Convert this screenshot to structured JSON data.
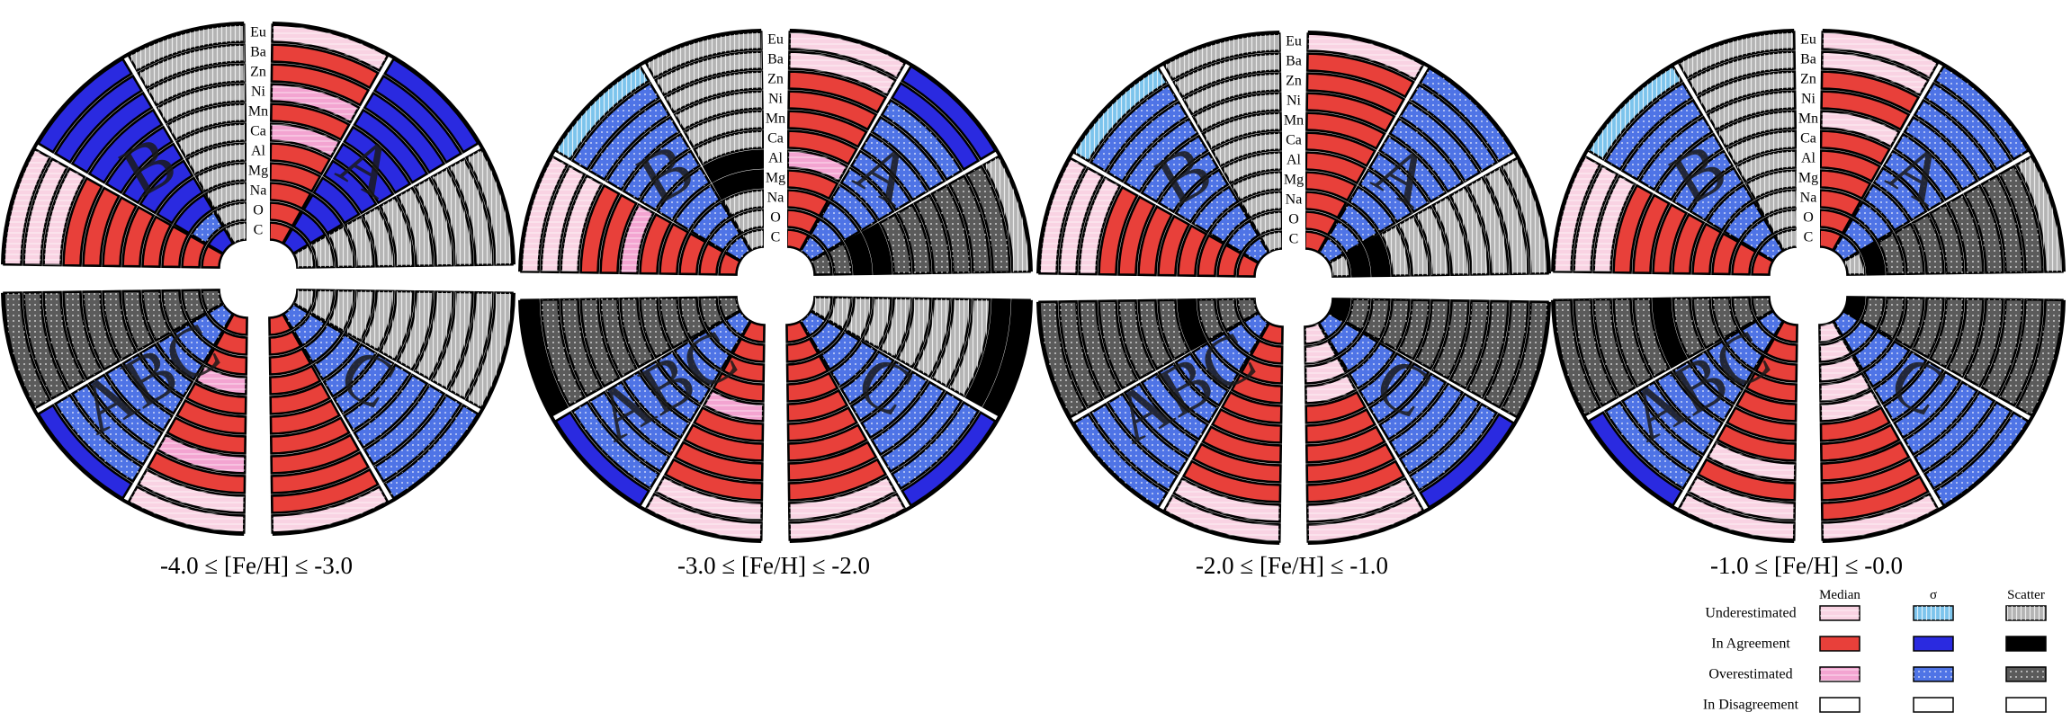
{
  "chart_data": {
    "type": "radial-segmented-wheel",
    "title": "",
    "elements": [
      "C",
      "O",
      "Na",
      "Mg",
      "Al",
      "Ca",
      "Mn",
      "Ni",
      "Zn",
      "Ba",
      "Eu"
    ],
    "element_labels_top_to_bottom": [
      "Eu",
      "Ba",
      "Zn",
      "Ni",
      "Mn",
      "Ca",
      "Al",
      "Mg",
      "Na",
      "O",
      "C"
    ],
    "measure_order_in_half_sector": [
      "Median",
      "σ",
      "Scatter"
    ],
    "category_codes": {
      "U": "Underestimated",
      "A": "In Agreement",
      "O": "Overestimated",
      "D": "In Disagreement"
    },
    "quadrants": [
      "Group A",
      "Group B",
      "Group C"
    ],
    "panels": [
      {
        "caption": "-4.0 ≤ [Fe/H] ≤ -3.0",
        "quadrant_letters": [
          "A",
          "B",
          "C",
          "ABC"
        ],
        "quadrants": [
          {
            "Median": "AAAAAOAOAAU",
            "σ": "AAAAAAAAAAA",
            "Scatter": "UUUUUUUUUUU"
          },
          {
            "Median": "AAAAAAAAUUU",
            "σ": "AOAAAAAAAAA",
            "Scatter": "UUUUUUUUUUU"
          },
          {
            "Median": "AAAAAAAAAAU",
            "σ": "OOOOOOOOOOO",
            "Scatter": "UUUUUUUUUUU"
          },
          {
            "Median": "AAAOAAAOAUU",
            "σ": "OOOOOOOOOOA",
            "Scatter": "OOOOOOOOOOO"
          }
        ]
      },
      {
        "caption": "-3.0 ≤ [Fe/H] ≤ -2.0",
        "quadrant_letters": [
          "A",
          "B",
          "C",
          "ABC"
        ],
        "quadrants": [
          {
            "Median": "AAAAOAAAAUU",
            "σ": "OOOOOOOOOAA",
            "Scatter": "OOAAOOOOOOU"
          },
          {
            "Median": "AAAAAOAAUUU",
            "σ": "OOOOOOOOOOU",
            "Scatter": "UUUAAUUUUUU"
          },
          {
            "Median": "AAAAAAAAAUU",
            "σ": "OOOOOOOOOOA",
            "Scatter": "UUUUUUUUUAA"
          },
          {
            "Median": "AAAAOAAAAUU",
            "σ": "OOOOOOOOOOA",
            "Scatter": "OOOOOOOOOOA"
          }
        ]
      },
      {
        "caption": "-2.0 ≤ [Fe/H] ≤ -1.0",
        "quadrant_letters": [
          "A",
          "B",
          "C",
          "ABC"
        ],
        "quadrants": [
          {
            "Median": "AAAAAAAAAAU",
            "σ": "OOOOOOOOOOO",
            "Scatter": "UAAUUUUUUUU"
          },
          {
            "Median": "AAAAAAAAUUU",
            "σ": "OOOOOOOOOOU",
            "Scatter": "UUUUUUUUUUU"
          },
          {
            "Median": "UUUUAAAAAUU",
            "σ": "OOOOOOOOOOA",
            "Scatter": "AOOOOOOOOOO"
          },
          {
            "Median": "AAAAAAAAAUU",
            "σ": "OOOOOOOOOOO",
            "Scatter": "OOOAOOOOOOO"
          }
        ]
      },
      {
        "caption": "-1.0 ≤ [Fe/H] ≤ -0.0",
        "quadrant_letters": [
          "A",
          "B",
          "C",
          "ABC"
        ],
        "quadrants": [
          {
            "Median": "AAAAAAUAAUU",
            "σ": "OOOOOOOOOOO",
            "Scatter": "UAOOOOOOOOU"
          },
          {
            "Median": "AAAAAAAAUUU",
            "σ": "OOOOOOOOOOU",
            "Scatter": "UUUUUUUUUUU"
          },
          {
            "Median": "UUUUUAAAAAU",
            "σ": "OOOOOOOOOOO",
            "Scatter": "AOOOOOOOOOO"
          },
          {
            "Median": "AAAAAAAUAUU",
            "σ": "OOOOOOOOOOA",
            "Scatter": "OOOOOAOOOOO"
          }
        ]
      }
    ]
  },
  "legend": {
    "column_headers": [
      "Median",
      "σ",
      "Scatter"
    ],
    "row_labels": [
      "Underestimated",
      "In Agreement",
      "Overestimated",
      "In Disagreement"
    ],
    "row_codes": [
      "U",
      "A",
      "O",
      "D"
    ]
  },
  "colors": {
    "median": {
      "U": "#f9d3e3",
      "A": "#e8403a",
      "O": "#f3a4d1",
      "D": "#ffffff"
    },
    "sigma": {
      "U": "#7cc4ec",
      "A": "#2a2ae0",
      "O": "#4f74e6",
      "D": "#ffffff"
    },
    "scatter": {
      "U": "#b4b4b4",
      "A": "#000000",
      "O": "#5b5b5b",
      "D": "#ffffff"
    }
  }
}
